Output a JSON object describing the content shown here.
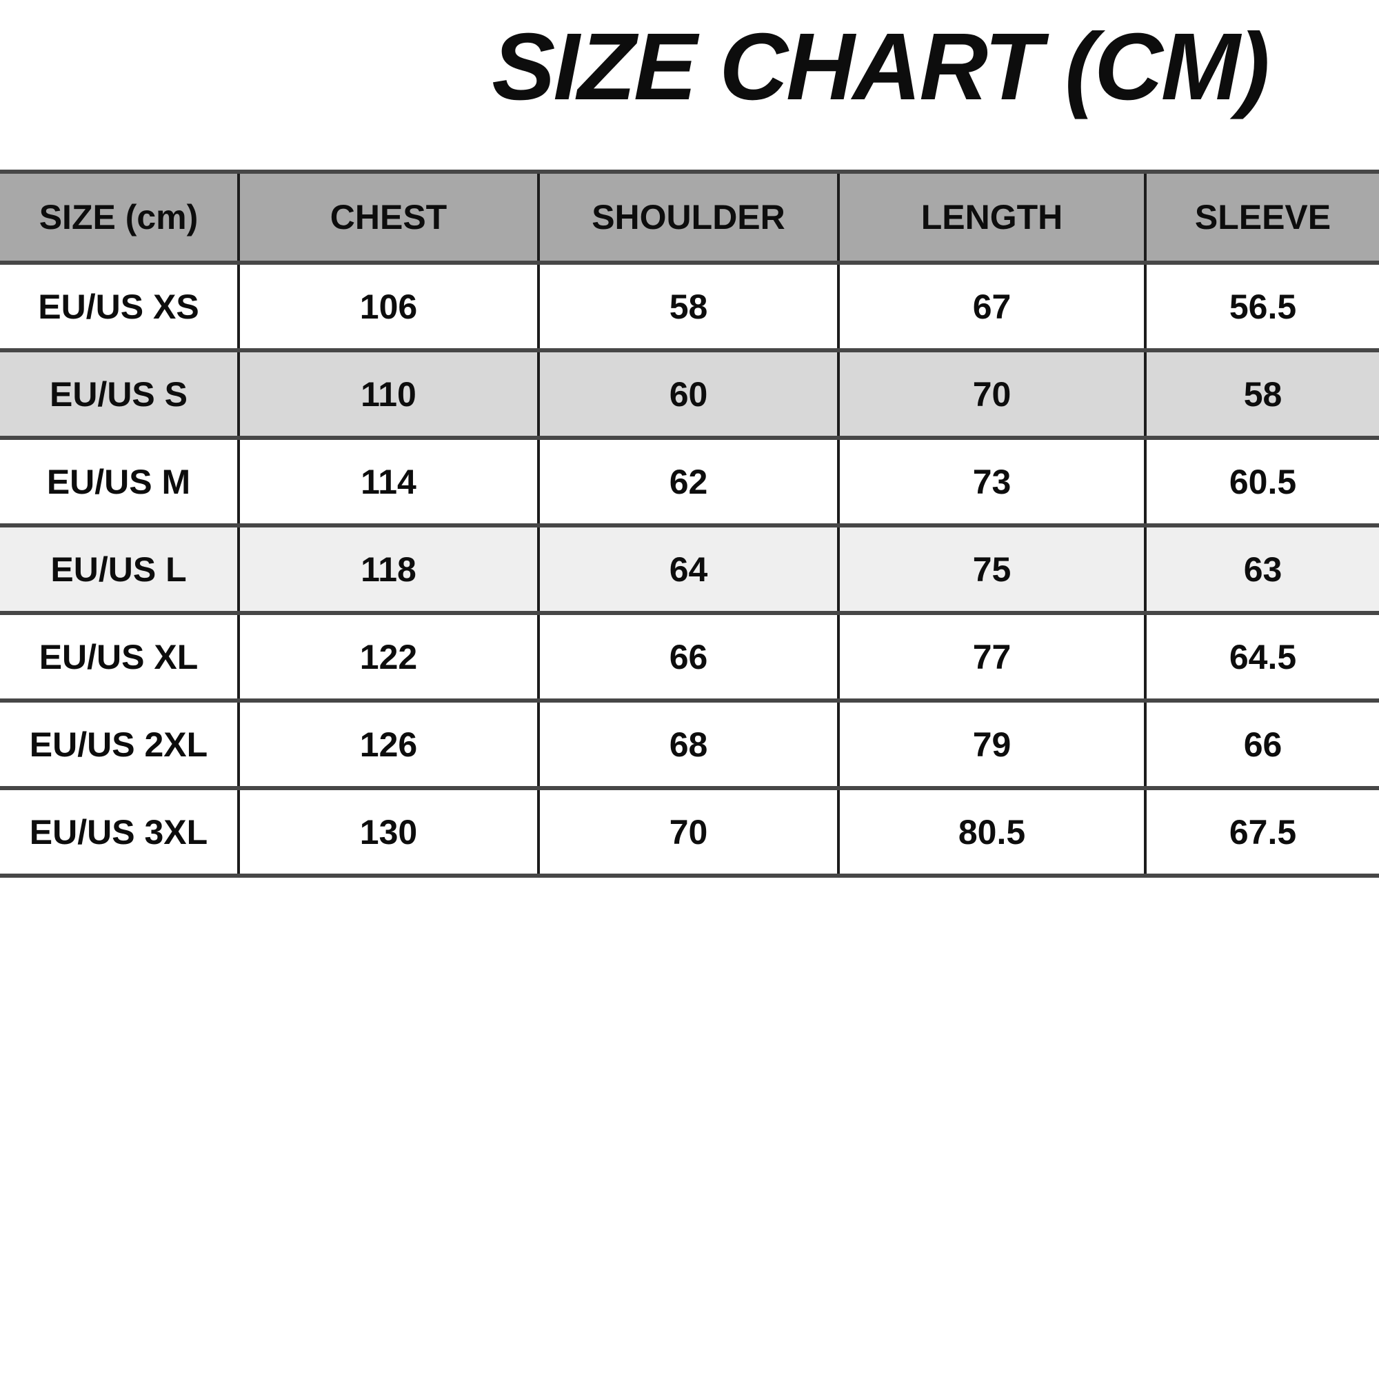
{
  "title": "SIZE CHART (CM)",
  "colors": {
    "page_bg": "#ffffff",
    "header_bg": "#a8a8a8",
    "row_white": "#ffffff",
    "stripe_gray": "#d8d8d8",
    "stripe_lightgray": "#efefef",
    "horizontal_rule": "#474747",
    "vertical_rule": "#1c1c1c",
    "text": "#0d0d0d"
  },
  "table": {
    "columns": [
      "SIZE (cm)",
      "CHEST",
      "SHOULDER",
      "LENGTH",
      "SLEEVE"
    ],
    "rows": [
      {
        "size": "EU/US XS",
        "values": [
          "106",
          "58",
          "67",
          "56.5"
        ],
        "shade": "white"
      },
      {
        "size": "EU/US S",
        "values": [
          "110",
          "60",
          "70",
          "58"
        ],
        "shade": "gray"
      },
      {
        "size": "EU/US M",
        "values": [
          "114",
          "62",
          "73",
          "60.5"
        ],
        "shade": "white"
      },
      {
        "size": "EU/US L",
        "values": [
          "118",
          "64",
          "75",
          "63"
        ],
        "shade": "lightgray"
      },
      {
        "size": "EU/US XL",
        "values": [
          "122",
          "66",
          "77",
          "64.5"
        ],
        "shade": "white"
      },
      {
        "size": "EU/US 2XL",
        "values": [
          "126",
          "68",
          "79",
          "66"
        ],
        "shade": "white"
      },
      {
        "size": "EU/US 3XL",
        "values": [
          "130",
          "70",
          "80.5",
          "67.5"
        ],
        "shade": "white"
      }
    ]
  },
  "chart_data": {
    "type": "table",
    "title": "SIZE CHART (CM)",
    "columns": [
      "SIZE (cm)",
      "CHEST",
      "SHOULDER",
      "LENGTH",
      "SLEEVE"
    ],
    "units": "cm",
    "rows": [
      [
        "EU/US XS",
        106,
        58,
        67,
        56.5
      ],
      [
        "EU/US S",
        110,
        60,
        70,
        58
      ],
      [
        "EU/US M",
        114,
        62,
        73,
        60.5
      ],
      [
        "EU/US L",
        118,
        64,
        75,
        63
      ],
      [
        "EU/US XL",
        122,
        66,
        77,
        64.5
      ],
      [
        "EU/US 2XL",
        126,
        68,
        79,
        66
      ],
      [
        "EU/US 3XL",
        130,
        70,
        80.5,
        67.5
      ]
    ],
    "layout_hints": {
      "header_fill": "#a8a8a8",
      "striped_rows": [
        "EU/US S",
        "EU/US L"
      ],
      "grid": "on",
      "left_and_right_table_edges_cropped": true
    }
  }
}
